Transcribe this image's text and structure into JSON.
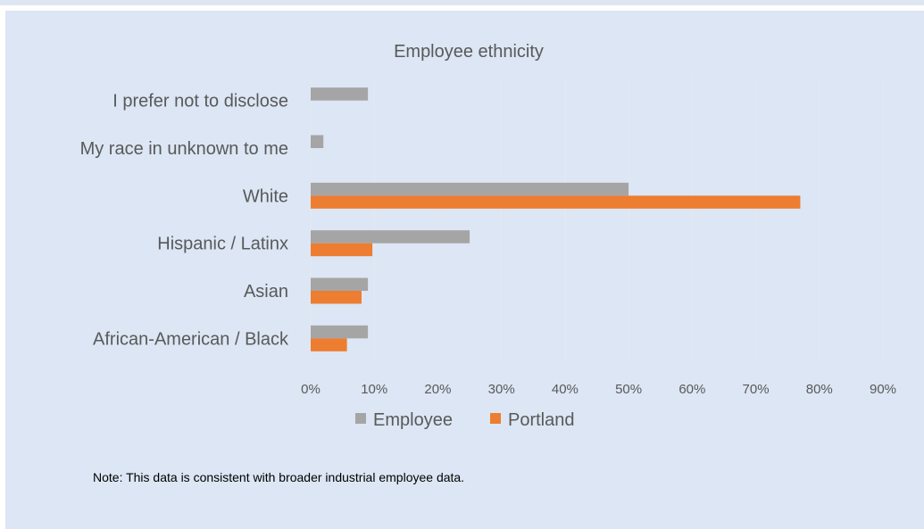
{
  "colors": {
    "employee": "#a5a5a5",
    "portland": "#ed7d31",
    "gridline": "#e4e9f1"
  },
  "chart_data": {
    "type": "bar",
    "orientation": "horizontal",
    "title": "Employee ethnicity",
    "categories": [
      "I prefer not to disclose",
      "My race in unknown to me",
      "White",
      "Hispanic / Latinx",
      "Asian",
      "African-American / Black"
    ],
    "series": [
      {
        "name": "Employee",
        "values": [
          9,
          2,
          50,
          25,
          9,
          9
        ]
      },
      {
        "name": "Portland",
        "values": [
          null,
          null,
          77,
          9.7,
          8,
          5.7
        ]
      }
    ],
    "xlim": [
      0,
      90
    ],
    "xticks": [
      0,
      10,
      20,
      30,
      40,
      50,
      60,
      70,
      80,
      90
    ],
    "xtick_labels": [
      "0%",
      "10%",
      "20%",
      "30%",
      "40%",
      "50%",
      "60%",
      "70%",
      "80%",
      "90%"
    ],
    "grid": true,
    "legend_position": "bottom"
  },
  "note": "Note: This data is consistent with broader industrial employee data."
}
